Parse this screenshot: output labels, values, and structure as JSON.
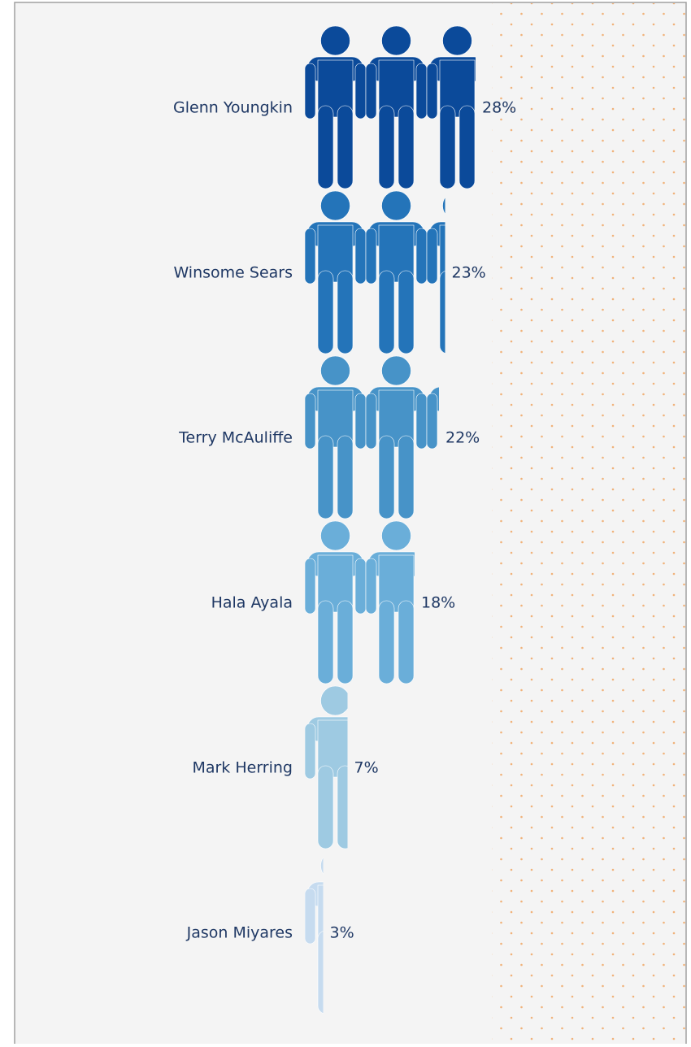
{
  "chart_data": {
    "type": "pictogram",
    "categories": [
      "Glenn Youngkin",
      "Winsome Sears",
      "Terry McAuliffe",
      "Hala Ayala",
      "Mark Herring",
      "Jason Miyares"
    ],
    "values": [
      28,
      23,
      22,
      18,
      7,
      3
    ],
    "value_labels": [
      "28%",
      "23%",
      "22%",
      "18%",
      "7%",
      "3%"
    ],
    "colors": [
      "#0b4a9a",
      "#2474b9",
      "#4793c8",
      "#6aaed9",
      "#9ecae2",
      "#c6dbef"
    ]
  }
}
